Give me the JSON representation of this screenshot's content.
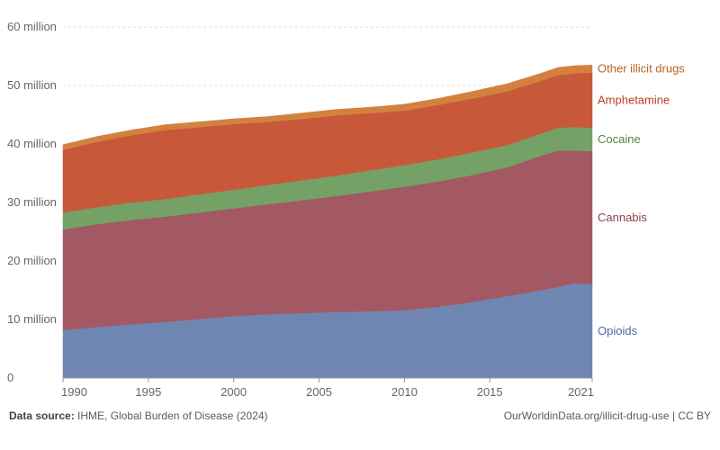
{
  "chart_data": {
    "type": "area",
    "stacked": true,
    "x": [
      1990,
      1992,
      1994,
      1996,
      1998,
      2000,
      2002,
      2004,
      2006,
      2008,
      2010,
      2012,
      2014,
      2016,
      2018,
      2019,
      2020,
      2021
    ],
    "series": [
      {
        "name": "Opioids",
        "color": "#6f86b2",
        "values": [
          8.2,
          8.7,
          9.2,
          9.6,
          10.1,
          10.6,
          10.9,
          11.1,
          11.3,
          11.4,
          11.6,
          12.2,
          13.0,
          14.0,
          15.0,
          15.6,
          16.2,
          16.0
        ]
      },
      {
        "name": "Cannabis",
        "color": "#a25963",
        "values": [
          17.2,
          17.6,
          17.8,
          18.0,
          18.2,
          18.4,
          18.8,
          19.3,
          19.8,
          20.5,
          21.1,
          21.4,
          21.7,
          22.0,
          23.0,
          23.3,
          22.7,
          22.8
        ]
      },
      {
        "name": "Cocaine",
        "color": "#74a166",
        "values": [
          2.9,
          2.9,
          3.0,
          3.0,
          3.1,
          3.2,
          3.3,
          3.4,
          3.5,
          3.6,
          3.7,
          3.8,
          3.9,
          3.8,
          3.8,
          3.9,
          4.0,
          4.0
        ]
      },
      {
        "name": "Amphetamine",
        "color": "#c7593a",
        "values": [
          10.7,
          11.2,
          11.5,
          11.8,
          11.5,
          11.2,
          10.8,
          10.5,
          10.3,
          9.8,
          9.3,
          9.3,
          9.2,
          9.2,
          9.0,
          9.0,
          9.2,
          9.4
        ]
      },
      {
        "name": "Other illicit drugs",
        "color": "#d4813f",
        "values": [
          0.9,
          0.9,
          0.9,
          0.9,
          0.9,
          0.9,
          0.9,
          1.0,
          1.0,
          1.0,
          1.1,
          1.1,
          1.2,
          1.3,
          1.3,
          1.3,
          1.3,
          1.3
        ]
      }
    ],
    "y_ticks": [
      0,
      10,
      20,
      30,
      40,
      50,
      60
    ],
    "y_tick_labels": [
      "0",
      "10 million",
      "20 million",
      "30 million",
      "40 million",
      "50 million",
      "60 million"
    ],
    "x_ticks": [
      1990,
      1995,
      2000,
      2005,
      2010,
      2015,
      2021
    ],
    "x_tick_labels": [
      "1990",
      "1995",
      "2000",
      "2005",
      "2010",
      "2015",
      "2021"
    ],
    "xlim": [
      1990,
      2021
    ],
    "ylim": [
      0,
      60
    ],
    "grid": "horizontal dashed",
    "legend": "right, inline labels"
  },
  "footer": {
    "source_label": "Data source:",
    "source_text": "IHME, Global Burden of Disease (2024)",
    "credit": "OurWorldinData.org/illicit-drug-use | CC BY"
  }
}
